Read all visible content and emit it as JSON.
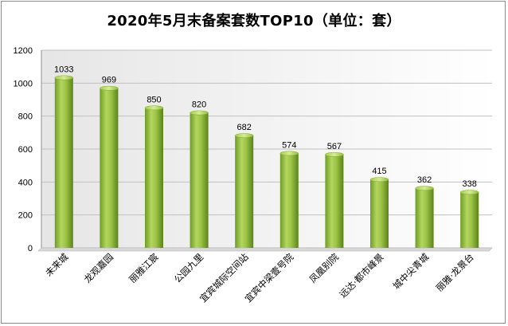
{
  "chart_data": {
    "type": "bar",
    "title": "2020年5月末备案套数TOP10（单位：套）",
    "categories": [
      "未来城",
      "龙观嘉园",
      "丽雅江宸",
      "公园九里",
      "宜宾城际空间站",
      "宜宾中梁壹号院",
      "凤凰别院",
      "远达·都市峰景",
      "城中尖青城",
      "丽雅·龙景台"
    ],
    "values": [
      1033,
      969,
      850,
      820,
      682,
      574,
      567,
      415,
      362,
      338
    ],
    "xlabel": "",
    "ylabel": "",
    "ylim": [
      0,
      1200
    ],
    "yticks": [
      0,
      200,
      400,
      600,
      800,
      1000,
      1200
    ],
    "grid": true,
    "legend": "none",
    "colors": {
      "bar": "#8cb83a",
      "bar_light": "#c6e07a",
      "bar_dark": "#5e8a1e",
      "grid": "#c0c0c0",
      "floor": "#b0b0b0"
    }
  }
}
